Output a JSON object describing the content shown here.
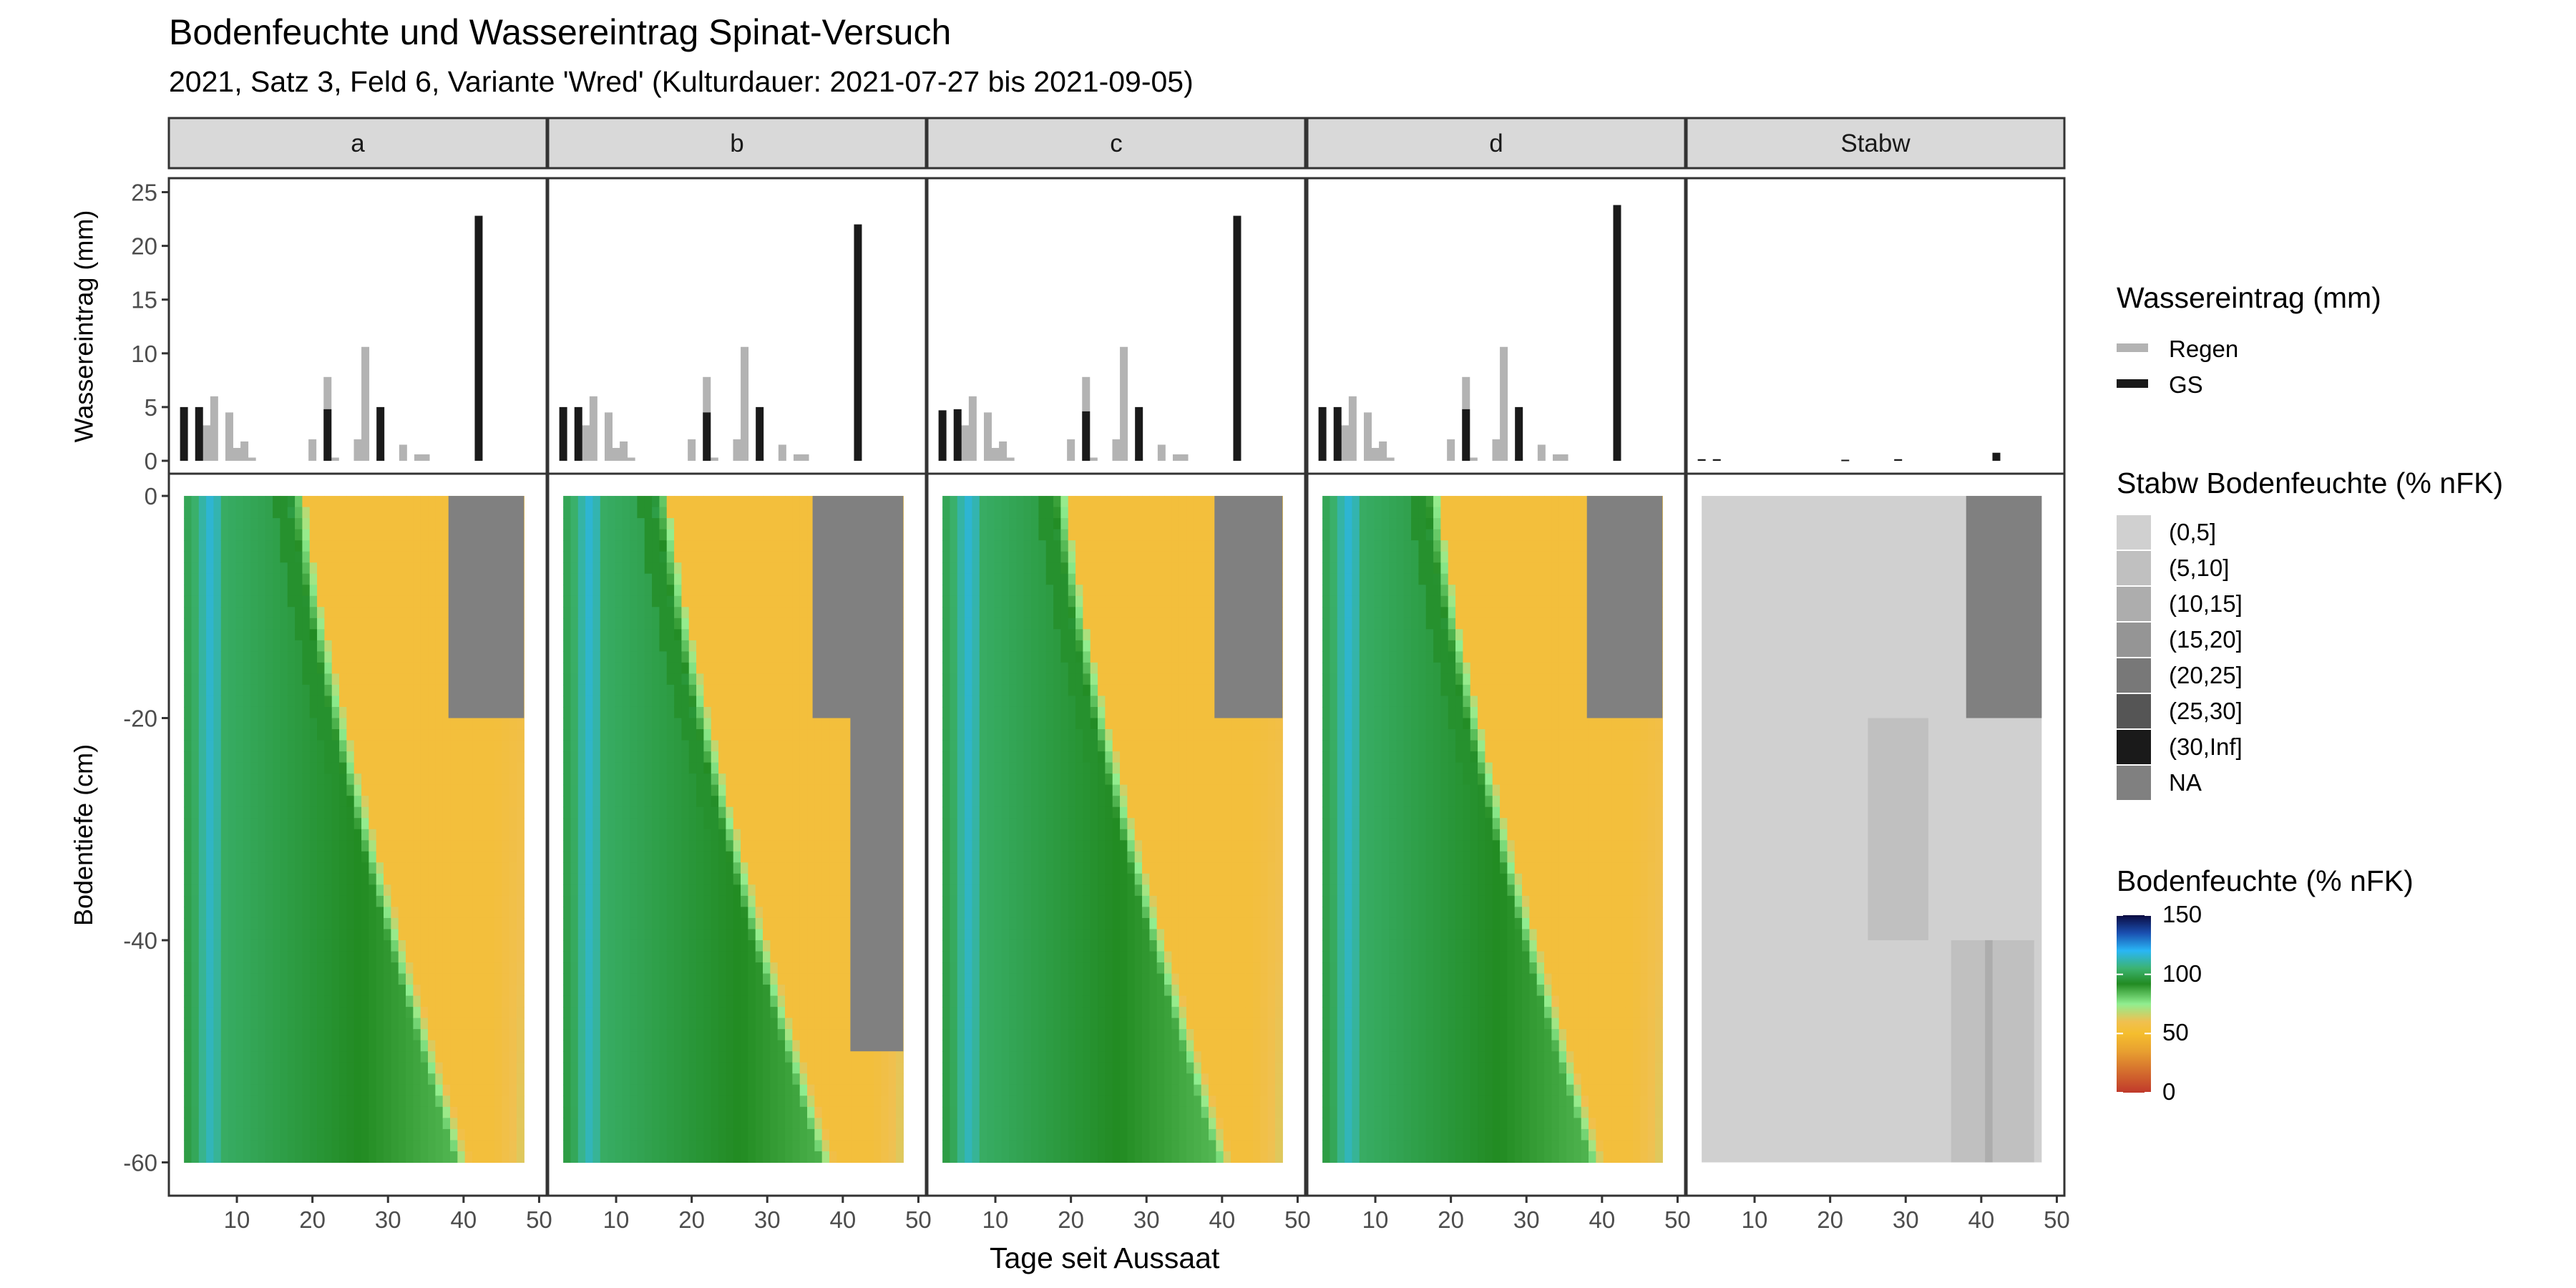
{
  "chart_data": {
    "type": "heatmap",
    "title": "Bodenfeuchte und Wassereintrag Spinat-Versuch",
    "subtitle": "2021, Satz 3, Feld 6, Variante 'Wred' (Kulturdauer: 2021-07-27 bis 2021-09-05)",
    "xlabel": "Tage seit Aussaat",
    "x_ticks": [
      10,
      20,
      30,
      40,
      50
    ],
    "xlim": [
      1,
      51
    ],
    "facets": [
      "a",
      "b",
      "c",
      "d",
      "Stabw"
    ],
    "water_input": {
      "ylabel": "Wassereintrag (mm)",
      "y_ticks": [
        0,
        5,
        10,
        15,
        20,
        25
      ],
      "ylim": [
        -1.2,
        26.3
      ],
      "legend_title": "Wassereintrag (mm)",
      "series": [
        {
          "name": "Regen",
          "color": "#b3b3b3",
          "points": [
            [
              6,
              3.3
            ],
            [
              7,
              6
            ],
            [
              9,
              4.5
            ],
            [
              10,
              1.2
            ],
            [
              11,
              1.8
            ],
            [
              12,
              0.3
            ],
            [
              20,
              2
            ],
            [
              22,
              7.8
            ],
            [
              23,
              0.3
            ],
            [
              26,
              2
            ],
            [
              27,
              10.6
            ],
            [
              29,
              0.3
            ],
            [
              32,
              1.5
            ],
            [
              34,
              0.6
            ],
            [
              35,
              0.6
            ]
          ]
        },
        {
          "name": "GS",
          "by_facet": {
            "a": [
              [
                3,
                5
              ],
              [
                5,
                5
              ],
              [
                22,
                4.8
              ],
              [
                29,
                5
              ],
              [
                42,
                22.8
              ]
            ],
            "b": [
              [
                3,
                5
              ],
              [
                5,
                5
              ],
              [
                22,
                4.5
              ],
              [
                29,
                5
              ],
              [
                42,
                22
              ]
            ],
            "c": [
              [
                3,
                4.7
              ],
              [
                5,
                4.8
              ],
              [
                22,
                4.6
              ],
              [
                29,
                5
              ],
              [
                42,
                22.8
              ]
            ],
            "d": [
              [
                3,
                5
              ],
              [
                5,
                5
              ],
              [
                22,
                4.8
              ],
              [
                29,
                5
              ],
              [
                42,
                23.8
              ]
            ],
            "Stabw": [
              [
                3,
                0.15
              ],
              [
                5,
                0.15
              ],
              [
                22,
                0.1
              ],
              [
                29,
                0.15
              ],
              [
                42,
                0.75
              ]
            ]
          }
        }
      ]
    },
    "soil_moisture": {
      "ylabel": "Bodentiefe (cm)",
      "y_ticks": [
        0,
        -20,
        -40,
        -60
      ],
      "ylim": [
        -63,
        2
      ],
      "x_range": [
        3,
        48
      ],
      "depth_range": [
        -60,
        0
      ],
      "legend_title": "Bodenfeuchte (% nFK)",
      "colorbar_ticks": [
        150,
        100,
        50,
        0
      ],
      "colorbar_range": [
        0,
        150
      ],
      "colorbar_stops": [
        {
          "value": 0,
          "color": "#c0392b"
        },
        {
          "value": 35,
          "color": "#e8a030"
        },
        {
          "value": 50,
          "color": "#f5be2e"
        },
        {
          "value": 60,
          "color": "#f0c050"
        },
        {
          "value": 75,
          "color": "#90ee90"
        },
        {
          "value": 92,
          "color": "#228b22"
        },
        {
          "value": 105,
          "color": "#3cb371"
        },
        {
          "value": 120,
          "color": "#29b6f6"
        },
        {
          "value": 135,
          "color": "#1a4fb0"
        },
        {
          "value": 150,
          "color": "#0b0b40"
        }
      ],
      "na_blocks": {
        "a": [
          {
            "x": [
              38,
              48
            ],
            "depth": [
              -20,
              0
            ]
          }
        ],
        "b": [
          {
            "x": [
              36,
              48
            ],
            "depth": [
              -20,
              0
            ]
          },
          {
            "x": [
              41,
              48
            ],
            "depth": [
              -50,
              -20
            ]
          }
        ],
        "c": [
          {
            "x": [
              39,
              48
            ],
            "depth": [
              -20,
              0
            ]
          }
        ],
        "d": [
          {
            "x": [
              38,
              48
            ],
            "depth": [
              -20,
              0
            ]
          }
        ]
      },
      "stabw_legend_title": "Stabw Bodenfeuchte (% nFK)",
      "stabw_classes": [
        {
          "label": "(0,5]",
          "color": "#d0d0d0"
        },
        {
          "label": "(5,10]",
          "color": "#c0c0c0"
        },
        {
          "label": "(10,15]",
          "color": "#adadad"
        },
        {
          "label": "(15,20]",
          "color": "#959595"
        },
        {
          "label": "(20,25]",
          "color": "#787878"
        },
        {
          "label": "(25,30]",
          "color": "#555555"
        },
        {
          "label": "(30,Inf]",
          "color": "#1a1a1a"
        },
        {
          "label": "NA",
          "color": "#808080"
        }
      ],
      "stabw_cells": [
        {
          "x": [
            3,
            48
          ],
          "depth": [
            -60,
            0
          ],
          "class": "(0,5]"
        },
        {
          "x": [
            38,
            48
          ],
          "depth": [
            -20,
            0
          ],
          "class": "NA"
        },
        {
          "x": [
            25,
            33
          ],
          "depth": [
            -40,
            -20
          ],
          "class": "(5,10]"
        },
        {
          "x": [
            36,
            47
          ],
          "depth": [
            -60,
            -40
          ],
          "class": "(5,10]"
        },
        {
          "x": [
            40.5,
            41.5
          ],
          "depth": [
            -60,
            -40
          ],
          "class": "(10,15]"
        }
      ]
    }
  }
}
